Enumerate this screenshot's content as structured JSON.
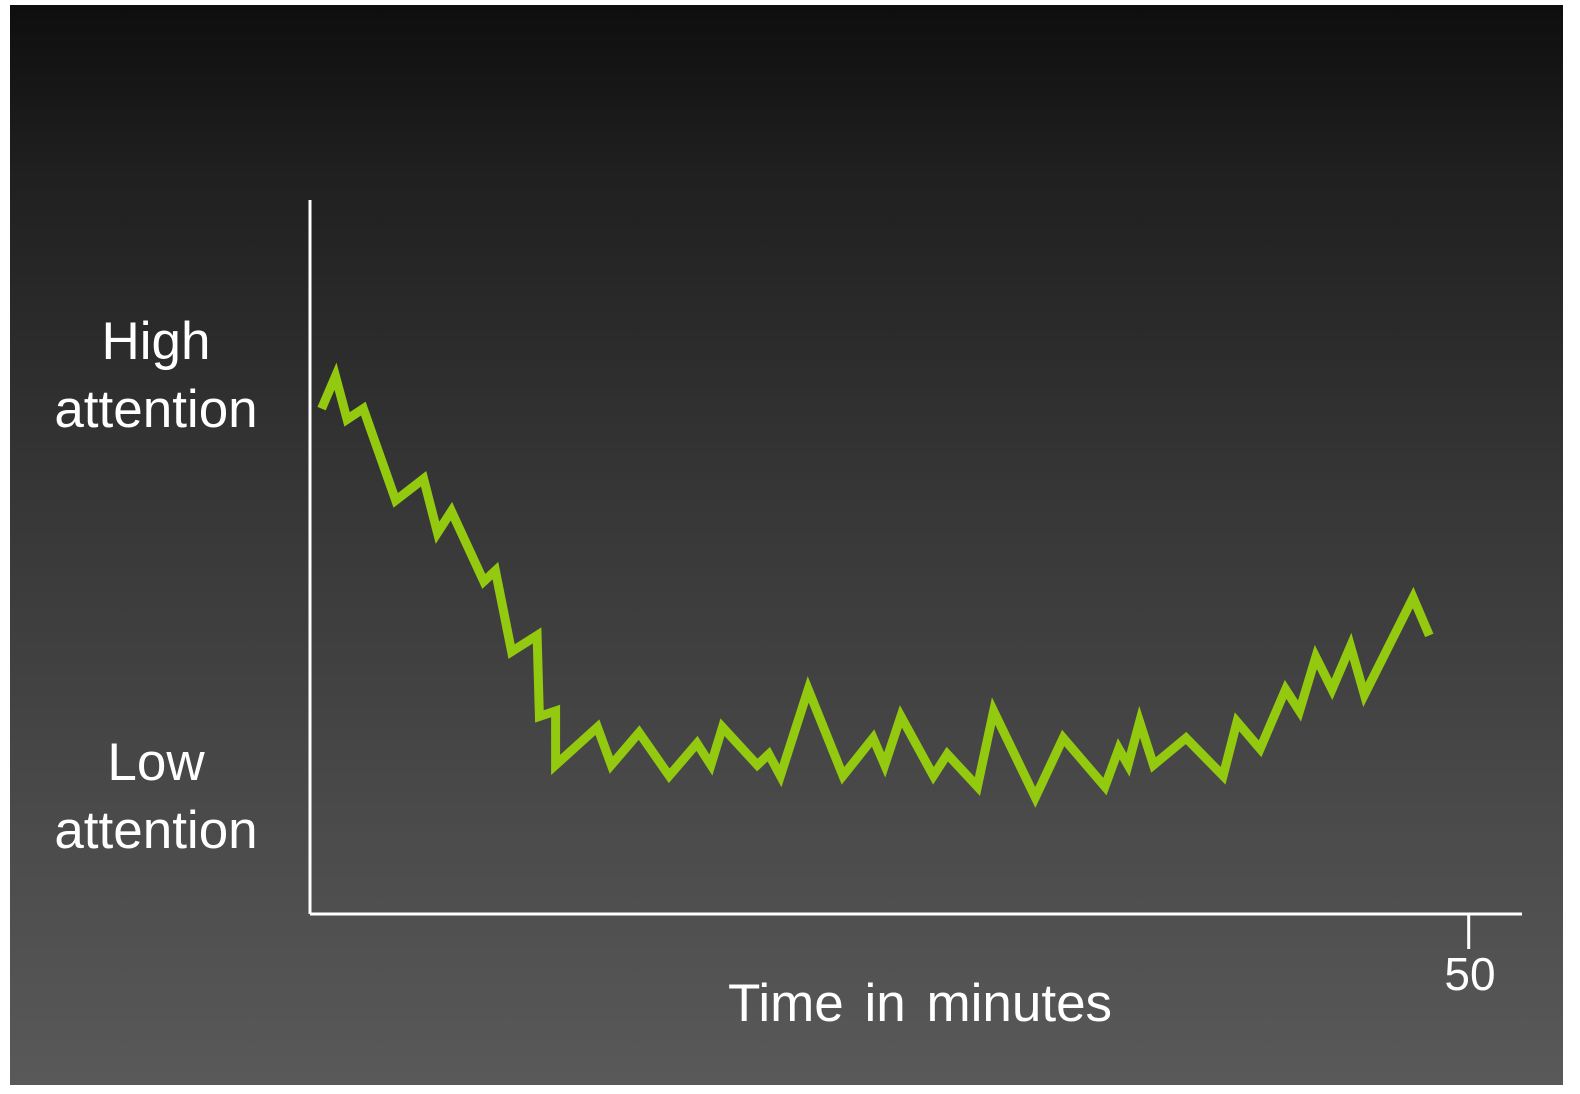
{
  "chart_data": {
    "type": "line",
    "title": "",
    "xlabel": "Time in minutes",
    "ylabel": "",
    "y_tick_labels": {
      "high": [
        "High",
        "attention"
      ],
      "low": [
        "Low",
        "attention"
      ]
    },
    "x_tick_label": "50",
    "x_tick_value": 50,
    "xlim": [
      0,
      52.3
    ],
    "ylim": [
      0,
      100
    ],
    "grid": false,
    "colors": {
      "line": "#93c90e",
      "axis": "#ffffff",
      "text": "#ffffff"
    },
    "series": [
      {
        "values": [
          [
            0.5,
            81
          ],
          [
            1.1,
            87
          ],
          [
            1.6,
            79
          ],
          [
            2.3,
            81
          ],
          [
            3.7,
            64
          ],
          [
            4.9,
            68
          ],
          [
            5.5,
            58
          ],
          [
            6.1,
            62
          ],
          [
            7.5,
            49
          ],
          [
            8.0,
            51
          ],
          [
            8.7,
            36
          ],
          [
            9.8,
            39
          ],
          [
            9.9,
            24
          ],
          [
            10.6,
            25
          ],
          [
            10.6,
            15
          ],
          [
            12.4,
            22
          ],
          [
            13.0,
            15
          ],
          [
            14.2,
            21
          ],
          [
            15.5,
            13
          ],
          [
            16.7,
            19
          ],
          [
            17.3,
            15
          ],
          [
            17.8,
            22
          ],
          [
            19.3,
            15
          ],
          [
            19.8,
            17
          ],
          [
            20.3,
            13
          ],
          [
            21.5,
            29
          ],
          [
            23.0,
            13
          ],
          [
            24.3,
            20
          ],
          [
            24.8,
            15
          ],
          [
            25.5,
            24
          ],
          [
            26.9,
            13
          ],
          [
            27.5,
            17
          ],
          [
            28.8,
            11
          ],
          [
            29.5,
            25
          ],
          [
            31.3,
            9
          ],
          [
            32.5,
            20
          ],
          [
            34.3,
            11
          ],
          [
            34.9,
            18
          ],
          [
            35.3,
            15
          ],
          [
            35.8,
            23
          ],
          [
            36.4,
            15
          ],
          [
            37.8,
            20
          ],
          [
            39.4,
            13
          ],
          [
            40.0,
            23
          ],
          [
            41.0,
            18
          ],
          [
            42.1,
            29
          ],
          [
            42.7,
            25
          ],
          [
            43.4,
            35
          ],
          [
            44.1,
            29
          ],
          [
            44.9,
            37
          ],
          [
            45.5,
            28
          ],
          [
            47.6,
            46
          ],
          [
            48.3,
            39
          ]
        ]
      }
    ]
  }
}
